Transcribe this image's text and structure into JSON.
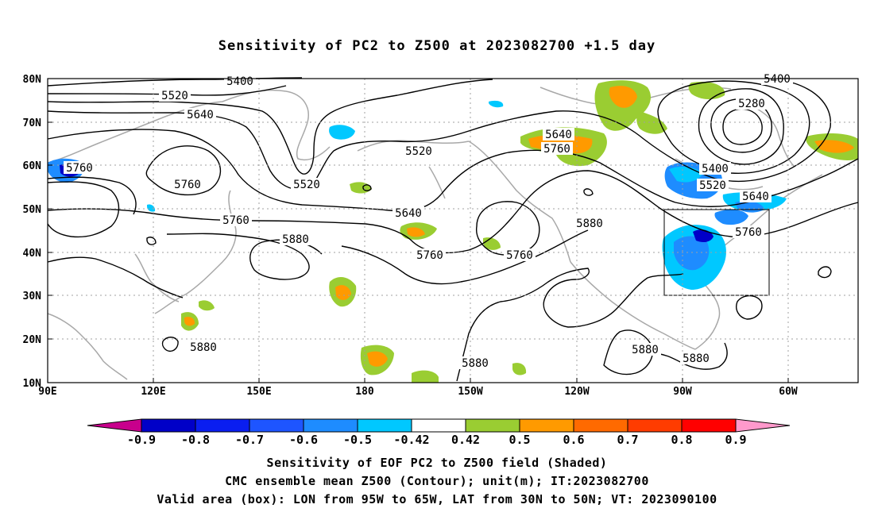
{
  "title": "Sensitivity of PC2 to Z500 at 2023082700 +1.5 day",
  "lat_labels": [
    "80N",
    "70N",
    "60N",
    "50N",
    "40N",
    "30N",
    "20N",
    "10N"
  ],
  "lon_labels": [
    "90E",
    "120E",
    "150E",
    "180",
    "150W",
    "120W",
    "90W",
    "60W"
  ],
  "contour_labels": [
    "5400",
    "5520",
    "5640",
    "5760",
    "5760",
    "5520",
    "5520",
    "5640",
    "5760",
    "5880",
    "5760",
    "5640",
    "5760",
    "5880",
    "5760",
    "5400",
    "5280",
    "5400",
    "5520",
    "5640",
    "5760",
    "5880",
    "5880",
    "5880",
    "5880"
  ],
  "colorbar": {
    "labels": [
      "-0.9",
      "-0.8",
      "-0.7",
      "-0.6",
      "-0.5",
      "-0.42",
      "0.42",
      "0.5",
      "0.6",
      "0.7",
      "0.8",
      "0.9"
    ],
    "colors": [
      "#c8008c",
      "#0000c8",
      "#0a1ef0",
      "#1e55ff",
      "#1e8cff",
      "#00c8ff",
      "#ffffff",
      "#9acd32",
      "#ff9a00",
      "#ff6a00",
      "#ff3c00",
      "#ff0000",
      "#ff99cc"
    ]
  },
  "captions": {
    "line1": "Sensitivity of EOF PC2 to Z500 field (Shaded)",
    "line2": "CMC ensemble mean Z500 (Contour); unit(m); IT:2023082700",
    "line3": "Valid area (box): LON from 95W to 65W, LAT from 30N to 50N; VT: 2023090100"
  }
}
